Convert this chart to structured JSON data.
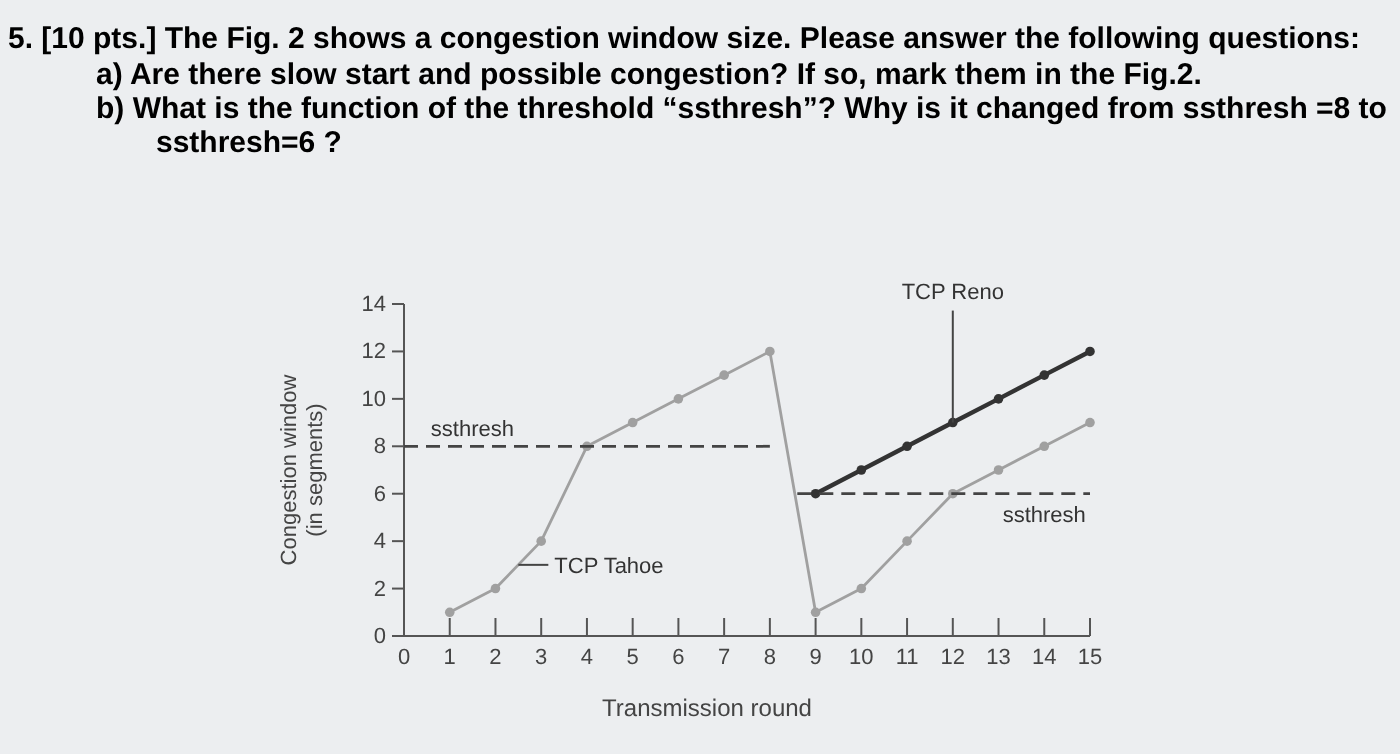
{
  "chart_data": {
    "type": "line",
    "title": "5.  [10 pts.] The Fig. 2 shows a congestion window size. Please answer the following questions:",
    "annotations": [
      "a)  Are there slow start and possible congestion? If so, mark them in the Fig.2.",
      "b)  What is the function of the threshold “ssthresh”? Why is it changed from ssthresh =8 to",
      "ssthresh=6 ?",
      {
        "text": "TCP Tahoe",
        "x": 2.5,
        "y": 3
      },
      {
        "text": "TCP Reno",
        "x": 12,
        "y": 9
      },
      {
        "text": "ssthresh",
        "x": 0.5,
        "y": 8
      },
      {
        "text": "ssthresh",
        "x": 14,
        "y": 6
      }
    ],
    "xlabel": "Transmission round",
    "ylabel": "Congestion window (in segments)",
    "xlim": [
      0,
      15
    ],
    "xticks": [
      0,
      1,
      2,
      3,
      4,
      5,
      6,
      7,
      8,
      9,
      10,
      11,
      12,
      13,
      14,
      15
    ],
    "ylim": [
      0,
      14
    ],
    "yticks": [
      0,
      2,
      4,
      6,
      8,
      10,
      12,
      14
    ],
    "marker": "circle",
    "grid": false,
    "series": [
      {
        "color": "#a0a0a0",
        "x": [
          1,
          2,
          3,
          4,
          5,
          6,
          7,
          8,
          9,
          10,
          11,
          12,
          13,
          14,
          15
        ],
        "values": [
          1,
          2,
          4,
          8,
          9,
          10,
          11,
          12,
          1,
          2,
          4,
          6,
          7,
          8,
          9
        ]
      },
      {
        "color": "#333333",
        "x": [
          9,
          10,
          11,
          12,
          13,
          14,
          15
        ],
        "values": [
          6,
          7,
          8,
          9,
          10,
          11,
          12
        ]
      },
      {
        "color": "#444444",
        "x": [
          0,
          8
        ],
        "values": [
          8,
          8
        ],
        "line_style": "dashed",
        "marker": "none"
      },
      {
        "color": "#444444",
        "x": [
          8.6,
          15
        ],
        "values": [
          6,
          6
        ],
        "line_style": "dashed",
        "marker": "none"
      }
    ]
  }
}
